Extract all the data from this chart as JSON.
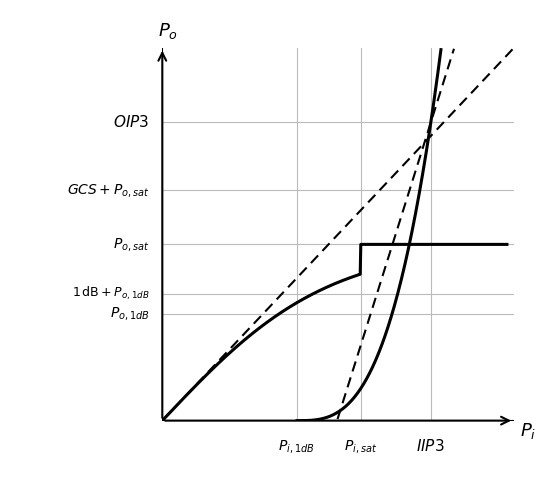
{
  "xlabel": "$P_i$",
  "ylabel": "$P_o$",
  "background_color": "#ffffff",
  "x_axis_end": 1.1,
  "y_axis_end": 1.1,
  "Pi_1dB": 0.42,
  "Pi_sat": 0.62,
  "IIP3": 0.84,
  "Po_1dB": 0.315,
  "Po_1dB_plus1": 0.375,
  "Po_sat": 0.52,
  "GCS_Po_sat": 0.68,
  "OIP3": 0.88,
  "text_Pi_1dB": "$P_{i,1dB}$",
  "text_Pi_sat": "$P_{i,sat}$",
  "text_IIP3": "$IIP3$",
  "text_Po_1dB": "$P_{o,1dB}$",
  "text_Po_1dB_plus1": "$1\\,\\mathrm{dB} + P_{o,1dB}$",
  "text_Po_sat": "$P_{o,sat}$",
  "text_GCS_Po_sat": "$GCS + P_{o,sat}$",
  "text_OIP3": "$OIP3$",
  "line_color": "#000000",
  "dashed_color": "#000000",
  "grid_color": "#bbbbbb"
}
